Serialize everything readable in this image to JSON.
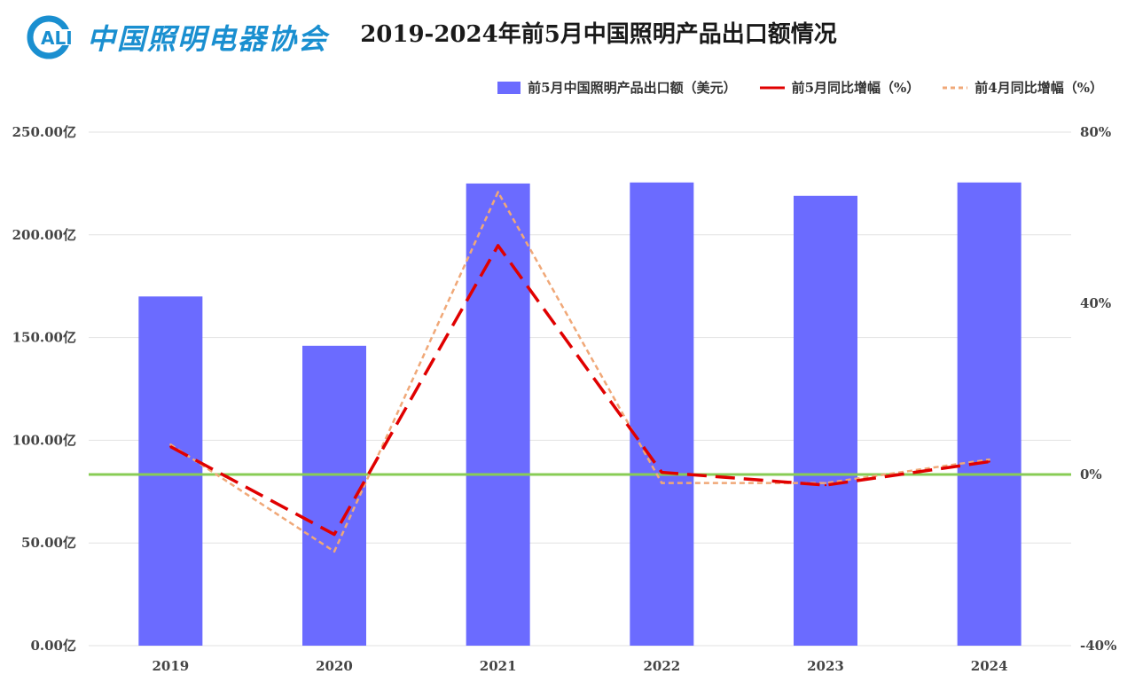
{
  "logo": {
    "abbr": "ALI",
    "name": "中国照明电器协会"
  },
  "chart_data": {
    "type": "bar+line",
    "title": "2019-2024年前5月中国照明产品出口额情况",
    "categories": [
      "2019",
      "2020",
      "2021",
      "2022",
      "2023",
      "2024"
    ],
    "bar_series": {
      "name": "前5月中国照明产品出口额（美元）",
      "values": [
        170,
        146,
        225,
        225.5,
        219,
        225.5
      ],
      "unit": "亿",
      "color": "#6b6bff"
    },
    "line_series": [
      {
        "name": "前5月同比增幅（%）",
        "values": [
          6.5,
          -14,
          53.5,
          0.5,
          -2.5,
          3
        ],
        "color": "#e00000",
        "dash": "long"
      },
      {
        "name": "前4月同比增幅（%）",
        "values": [
          7,
          -18,
          66,
          -2,
          -2,
          3.5
        ],
        "color": "#f0a878",
        "dash": "short"
      }
    ],
    "left_axis": {
      "min": 0,
      "max": 250,
      "ticks": [
        "0.00亿",
        "50.00亿",
        "100.00亿",
        "150.00亿",
        "200.00亿",
        "250.00亿"
      ]
    },
    "right_axis": {
      "min": -40,
      "max": 80,
      "ticks": [
        "-40%",
        "0%",
        "40%",
        "80%"
      ],
      "tick_values": [
        -40,
        0,
        40,
        80
      ]
    },
    "zero_line_color": "#88cc55"
  }
}
